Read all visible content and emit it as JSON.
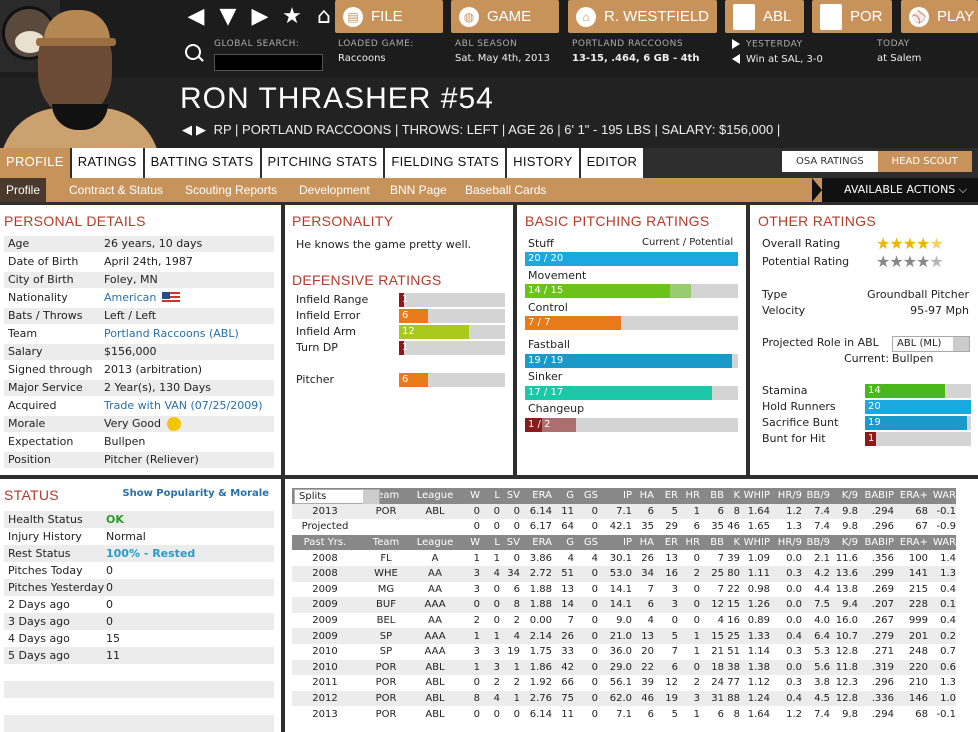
{
  "topnav": {
    "buttons": {
      "file": "FILE",
      "game": "GAME",
      "team": "R. WESTFIELD",
      "abl": "ABL",
      "por": "POR",
      "play": "PLAY"
    },
    "search_label": "GLOBAL SEARCH:",
    "loaded_game": {
      "label": "LOADED GAME:",
      "value": "Raccoons"
    },
    "season": {
      "label": "ABL SEASON",
      "value": "Sat. May 4th, 2013"
    },
    "team": {
      "label": "PORTLAND RACCOONS",
      "value": "13-15, .464, 6 GB - 4th"
    },
    "yesterday": {
      "label": "YESTERDAY",
      "value": "Win at SAL, 3-0"
    },
    "today": {
      "label": "TODAY",
      "value": "at Salem"
    }
  },
  "player": {
    "name": "RON THRASHER  #54",
    "subtitle": "RP | PORTLAND RACCOONS  |  THROWS: LEFT  |  AGE 26  |  6' 1\" - 195 LBS  |  SALARY: $156,000  |"
  },
  "tabs": [
    "PROFILE",
    "RATINGS",
    "BATTING STATS",
    "PITCHING STATS",
    "FIELDING STATS",
    "HISTORY",
    "EDITOR"
  ],
  "toggle": {
    "left": "OSA RATINGS",
    "right": "HEAD SCOUT"
  },
  "subnav": [
    "Profile",
    "Contract & Status",
    "Scouting Reports",
    "Development",
    "BNN Page",
    "Baseball Cards"
  ],
  "actions_label": "AVAILABLE ACTIONS",
  "personal": {
    "title": "PERSONAL DETAILS",
    "rows": [
      {
        "k": "Age",
        "v": "26 years, 10 days"
      },
      {
        "k": "Date of Birth",
        "v": "April 24th, 1987"
      },
      {
        "k": "City of Birth",
        "v": "Foley, MN"
      },
      {
        "k": "Nationality",
        "v": "American"
      },
      {
        "k": "Bats / Throws",
        "v": "Left / Left"
      },
      {
        "k": "Team",
        "v": "Portland Raccoons (ABL)"
      },
      {
        "k": "Salary",
        "v": "$156,000"
      },
      {
        "k": "Signed through",
        "v": "2013 (arbitration)"
      },
      {
        "k": "Major Service",
        "v": "2 Year(s), 130 Days"
      },
      {
        "k": "Acquired",
        "v": "Trade with VAN (07/25/2009)"
      },
      {
        "k": "Morale",
        "v": "Very Good"
      },
      {
        "k": "Expectation",
        "v": "Bullpen"
      },
      {
        "k": "Position",
        "v": "Pitcher (Reliever)"
      }
    ]
  },
  "personality": {
    "title": "PERSONALITY",
    "text": "He knows the game pretty well."
  },
  "defensive": {
    "title": "DEFENSIVE RATINGS",
    "rows": [
      {
        "k": "Infield Range",
        "v": "1",
        "pct": 0.05,
        "color": "#8b1a1a"
      },
      {
        "k": "Infield Error",
        "v": "6",
        "pct": 0.27,
        "color": "#e87a1a"
      },
      {
        "k": "Infield Arm",
        "v": "12",
        "pct": 0.66,
        "color": "#a9c81a"
      },
      {
        "k": "Turn DP",
        "v": "1",
        "pct": 0.05,
        "color": "#8b1a1a"
      },
      {
        "k": "Pitcher",
        "v": "6",
        "pct": 0.27,
        "color": "#e87a1a"
      }
    ]
  },
  "pitching": {
    "title": "BASIC PITCHING RATINGS",
    "cur_pot": "Current / Potential",
    "rows": [
      {
        "k": "Stuff",
        "v": "20 / 20",
        "cur": 1.0,
        "pot": 1.0,
        "color": "#1aa8e0"
      },
      {
        "k": "Movement",
        "v": "14 / 15",
        "cur": 0.68,
        "pot": 0.78,
        "color": "#6ac21a"
      },
      {
        "k": "Control",
        "v": "7 / 7",
        "cur": 0.45,
        "pot": 0.45,
        "color": "#e87a1a"
      },
      {
        "k": "Fastball",
        "v": "19 / 19",
        "cur": 0.97,
        "pot": 0.97,
        "color": "#1a9ac8"
      },
      {
        "k": "Sinker",
        "v": "17 / 17",
        "cur": 0.88,
        "pot": 0.88,
        "color": "#1ac8a8"
      },
      {
        "k": "Changeup",
        "v": "1 / 2",
        "cur": 0.08,
        "pot": 0.24,
        "color": "#8b1a1a"
      }
    ]
  },
  "other": {
    "title": "OTHER RATINGS",
    "overall_label": "Overall Rating",
    "overall_stars": 4.5,
    "potential_label": "Potential Rating",
    "potential_stars": 4.5,
    "type_label": "Type",
    "type_value": "Groundball Pitcher",
    "velocity_label": "Velocity",
    "velocity_value": "95-97 Mph",
    "role_label": "Projected Role in ABL",
    "role_select": "ABL (ML)",
    "current_label": "Current:",
    "current_value": "Bullpen",
    "bars": [
      {
        "k": "Stamina",
        "v": "14",
        "pct": 0.75,
        "color": "#4ab81a"
      },
      {
        "k": "Hold Runners",
        "v": "20",
        "pct": 1.0,
        "color": "#1aa8e0"
      },
      {
        "k": "Sacrifice Bunt",
        "v": "19",
        "pct": 0.96,
        "color": "#1a9ac8"
      },
      {
        "k": "Bunt for Hit",
        "v": "1",
        "pct": 0.1,
        "color": "#8b1a1a"
      }
    ]
  },
  "status": {
    "title": "STATUS",
    "link": "Show Popularity & Morale",
    "rows": [
      {
        "k": "Health Status",
        "v": "OK",
        "color": "#2a9a2a"
      },
      {
        "k": "Injury History",
        "v": "Normal",
        "color": "#222"
      },
      {
        "k": "Rest Status",
        "v": "100% - Rested",
        "color": "#2a9ac8"
      },
      {
        "k": "Pitches Today",
        "v": "0",
        "color": "#222"
      },
      {
        "k": "Pitches Yesterday",
        "v": "0",
        "color": "#222"
      },
      {
        "k": "2 Days ago",
        "v": "0",
        "color": "#222"
      },
      {
        "k": "3 Days ago",
        "v": "0",
        "color": "#222"
      },
      {
        "k": "4 Days ago",
        "v": "15",
        "color": "#222"
      },
      {
        "k": "5 Days ago",
        "v": "11",
        "color": "#222"
      }
    ]
  },
  "stats": {
    "splits_label": "Splits",
    "headers": [
      "Team",
      "League",
      "W",
      "L",
      "SV",
      "ERA",
      "G",
      "GS",
      "IP",
      "HA",
      "ER",
      "HR",
      "BB",
      "K",
      "WHIP",
      "HR/9",
      "BB/9",
      "K/9",
      "BABIP",
      "ERA+",
      "WAR"
    ],
    "current": [
      [
        "2013",
        "POR",
        "ABL",
        "0",
        "0",
        "0",
        "6.14",
        "11",
        "0",
        "7.1",
        "6",
        "5",
        "1",
        "6",
        "8",
        "1.64",
        "1.2",
        "7.4",
        "9.8",
        ".294",
        "68",
        "-0.1"
      ],
      [
        "Projected",
        "",
        "",
        "0",
        "0",
        "0",
        "6.17",
        "64",
        "0",
        "42.1",
        "35",
        "29",
        "6",
        "35",
        "46",
        "1.65",
        "1.3",
        "7.4",
        "9.8",
        ".296",
        "67",
        "-0.9"
      ]
    ],
    "past_label": "Past Yrs.",
    "past": [
      [
        "2008",
        "FL",
        "A",
        "1",
        "1",
        "0",
        "3.86",
        "4",
        "4",
        "30.1",
        "26",
        "13",
        "0",
        "7",
        "39",
        "1.09",
        "0.0",
        "2.1",
        "11.6",
        ".356",
        "100",
        "1.4"
      ],
      [
        "2008",
        "WHE",
        "AA",
        "3",
        "4",
        "34",
        "2.72",
        "51",
        "0",
        "53.0",
        "34",
        "16",
        "2",
        "25",
        "80",
        "1.11",
        "0.3",
        "4.2",
        "13.6",
        ".299",
        "141",
        "1.3"
      ],
      [
        "2009",
        "MG",
        "AA",
        "3",
        "0",
        "6",
        "1.88",
        "13",
        "0",
        "14.1",
        "7",
        "3",
        "0",
        "7",
        "22",
        "0.98",
        "0.0",
        "4.4",
        "13.8",
        ".269",
        "215",
        "0.4"
      ],
      [
        "2009",
        "BUF",
        "AAA",
        "0",
        "0",
        "8",
        "1.88",
        "14",
        "0",
        "14.1",
        "6",
        "3",
        "0",
        "12",
        "15",
        "1.26",
        "0.0",
        "7.5",
        "9.4",
        ".207",
        "228",
        "0.1"
      ],
      [
        "2009",
        "BEL",
        "AA",
        "2",
        "0",
        "2",
        "0.00",
        "7",
        "0",
        "9.0",
        "4",
        "0",
        "0",
        "4",
        "16",
        "0.89",
        "0.0",
        "4.0",
        "16.0",
        ".267",
        "999",
        "0.4"
      ],
      [
        "2009",
        "SP",
        "AAA",
        "1",
        "1",
        "4",
        "2.14",
        "26",
        "0",
        "21.0",
        "13",
        "5",
        "1",
        "15",
        "25",
        "1.33",
        "0.4",
        "6.4",
        "10.7",
        ".279",
        "201",
        "0.2"
      ],
      [
        "2010",
        "SP",
        "AAA",
        "3",
        "3",
        "19",
        "1.75",
        "33",
        "0",
        "36.0",
        "20",
        "7",
        "1",
        "21",
        "51",
        "1.14",
        "0.3",
        "5.3",
        "12.8",
        ".271",
        "248",
        "0.7"
      ],
      [
        "2010",
        "POR",
        "ABL",
        "1",
        "3",
        "1",
        "1.86",
        "42",
        "0",
        "29.0",
        "22",
        "6",
        "0",
        "18",
        "38",
        "1.38",
        "0.0",
        "5.6",
        "11.8",
        ".319",
        "220",
        "0.6"
      ],
      [
        "2011",
        "POR",
        "ABL",
        "0",
        "2",
        "2",
        "1.92",
        "66",
        "0",
        "56.1",
        "39",
        "12",
        "2",
        "24",
        "77",
        "1.12",
        "0.3",
        "3.8",
        "12.3",
        ".296",
        "210",
        "1.3"
      ],
      [
        "2012",
        "POR",
        "ABL",
        "8",
        "4",
        "1",
        "2.76",
        "75",
        "0",
        "62.0",
        "46",
        "19",
        "3",
        "31",
        "88",
        "1.24",
        "0.4",
        "4.5",
        "12.8",
        ".336",
        "146",
        "1.0"
      ],
      [
        "2013",
        "POR",
        "ABL",
        "0",
        "0",
        "0",
        "6.14",
        "11",
        "0",
        "7.1",
        "6",
        "5",
        "1",
        "6",
        "8",
        "1.64",
        "1.2",
        "7.4",
        "9.8",
        ".294",
        "68",
        "-0.1"
      ]
    ]
  }
}
